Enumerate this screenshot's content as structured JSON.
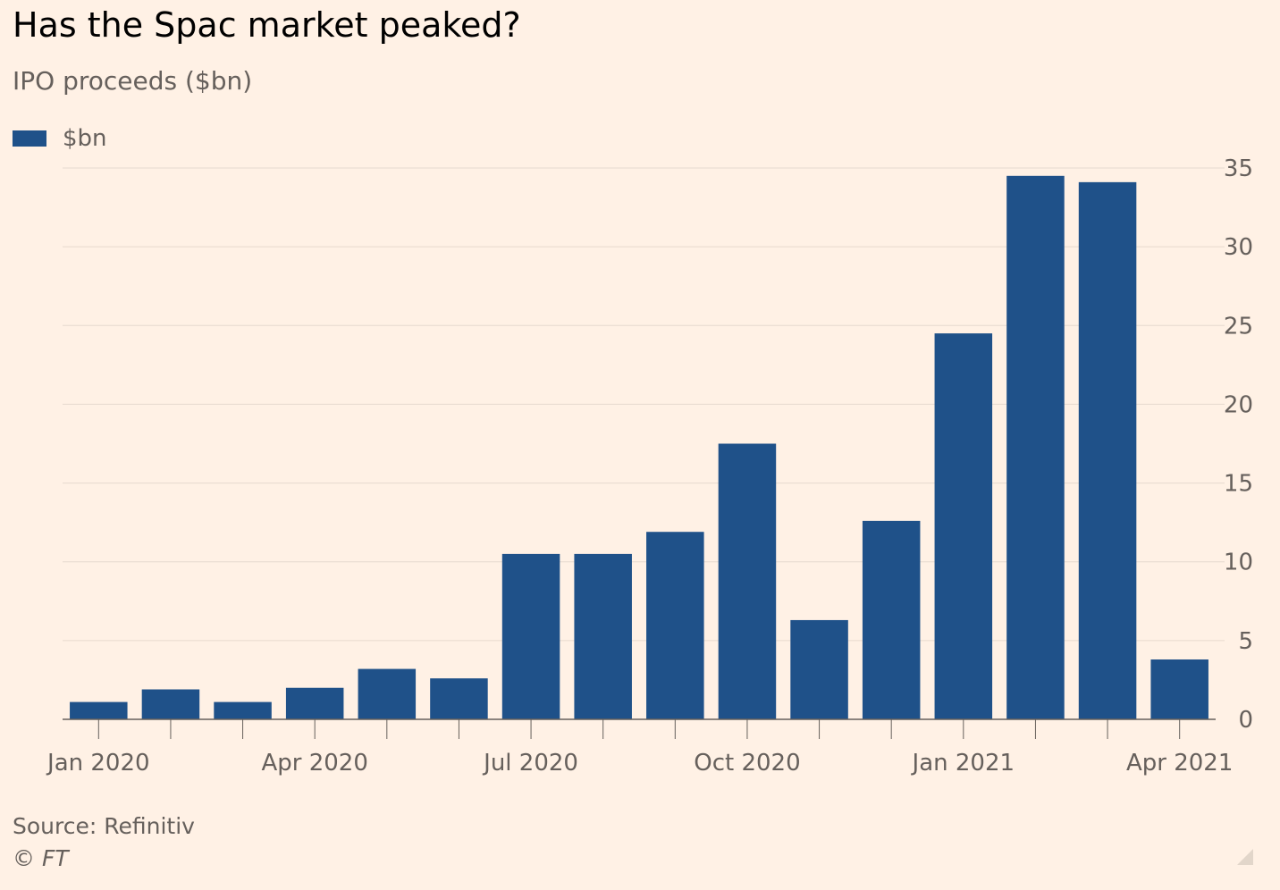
{
  "header": {
    "title": "Has the Spac market peaked?",
    "subtitle": "IPO proceeds ($bn)"
  },
  "legend": {
    "label": "$bn",
    "color": "#1f5189"
  },
  "footer": {
    "source": "Source: Refinitiv",
    "copyright": "© FT"
  },
  "colors": {
    "background": "#fff1e5",
    "bar": "#1f5189",
    "gridline": "#e6d9ce",
    "axis": "#66605c",
    "text": "#66605c"
  },
  "chart_data": {
    "type": "bar",
    "title": "Has the Spac market peaked?",
    "subtitle": "IPO proceeds ($bn)",
    "xlabel": "",
    "ylabel": "",
    "categories": [
      "Jan 2020",
      "Feb 2020",
      "Mar 2020",
      "Apr 2020",
      "May 2020",
      "Jun 2020",
      "Jul 2020",
      "Aug 2020",
      "Sep 2020",
      "Oct 2020",
      "Nov 2020",
      "Dec 2020",
      "Jan 2021",
      "Feb 2021",
      "Mar 2021",
      "Apr 2021"
    ],
    "series": [
      {
        "name": "$bn",
        "values": [
          1.1,
          1.9,
          1.1,
          2.0,
          3.2,
          2.6,
          10.5,
          10.5,
          11.9,
          17.5,
          6.3,
          12.6,
          24.5,
          34.5,
          34.1,
          3.8
        ]
      }
    ],
    "ylim": [
      0,
      35
    ],
    "yticks": [
      0,
      5,
      10,
      15,
      20,
      25,
      30,
      35
    ],
    "x_tick_labels": [
      "Jan 2020",
      "Apr 2020",
      "Jul 2020",
      "Oct 2020",
      "Jan 2021",
      "Apr 2021"
    ],
    "y_axis_side": "right",
    "grid": true,
    "legend_position": "top-left"
  }
}
